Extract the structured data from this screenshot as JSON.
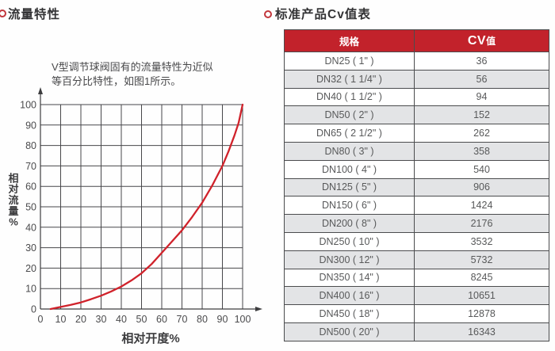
{
  "accent_red": "#c2222b",
  "left_panel": {
    "bullet_icon": "ring-bullet",
    "title": "流量特性",
    "desc_line1": "V型调节球阀固有的流量特性为近似",
    "desc_line2": "等百分比特性，如图1所示。"
  },
  "right_panel": {
    "bullet_icon": "ring-bullet",
    "title": "标准产品Cv值表"
  },
  "chart_data": [
    {
      "type": "line",
      "xlabel": "相对开度%",
      "ylabel": "相对流量%",
      "xlim": [
        0,
        100
      ],
      "ylim": [
        0,
        100
      ],
      "xticks": [
        0,
        10,
        20,
        30,
        40,
        50,
        60,
        70,
        80,
        90,
        100
      ],
      "yticks": [
        0,
        10,
        20,
        30,
        40,
        50,
        60,
        70,
        80,
        90,
        100
      ],
      "grid": true,
      "line_color": "#d0222b",
      "x": [
        5,
        10,
        15,
        20,
        25,
        30,
        35,
        40,
        45,
        50,
        55,
        60,
        65,
        70,
        75,
        80,
        85,
        90,
        93,
        96,
        98,
        100
      ],
      "y": [
        0,
        1,
        2,
        3.2,
        4.8,
        6.5,
        8.6,
        11,
        14,
        17.5,
        22,
        27.5,
        33,
        38.5,
        45,
        52,
        60.5,
        70,
        77,
        85,
        91,
        100
      ]
    },
    {
      "type": "table",
      "title": "标准产品Cv值表",
      "columns": [
        "规格",
        "CV值"
      ],
      "rows": [
        [
          "DN25 ( 1\" )",
          "36"
        ],
        [
          "DN32 ( 1 1/4\" )",
          "56"
        ],
        [
          "DN40 ( 1 1/2\" )",
          "94"
        ],
        [
          "DN50 ( 2\" )",
          "152"
        ],
        [
          "DN65 ( 2 1/2\" )",
          "262"
        ],
        [
          "DN80 ( 3\" )",
          "358"
        ],
        [
          "DN100 ( 4\" )",
          "540"
        ],
        [
          "DN125 ( 5\" )",
          "906"
        ],
        [
          "DN150 ( 6\" )",
          "1424"
        ],
        [
          "DN200 ( 8\" )",
          "2176"
        ],
        [
          "DN250 ( 10\" )",
          "3532"
        ],
        [
          "DN300 ( 12\" )",
          "5732"
        ],
        [
          "DN350 ( 14\" )",
          "8245"
        ],
        [
          "DN400 ( 16\" )",
          "10651"
        ],
        [
          "DN450 ( 18\" )",
          "12878"
        ],
        [
          "DN500 ( 20\" )",
          "16343"
        ]
      ],
      "header_bg": "#c2222b",
      "alt_row_bg": "#e3e4e6"
    }
  ]
}
